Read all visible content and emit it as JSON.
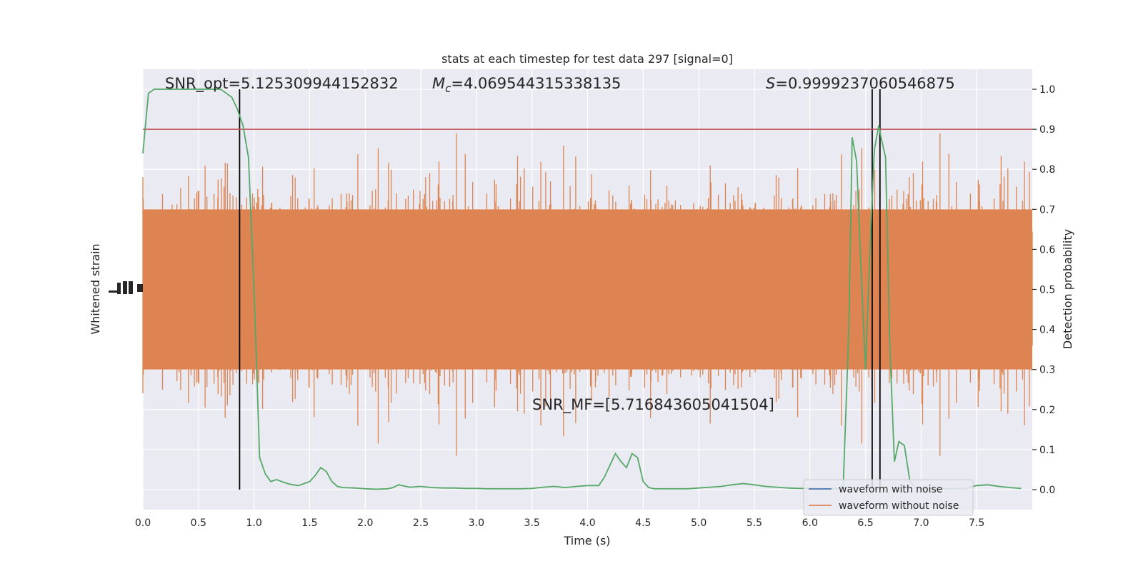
{
  "chart_data": {
    "type": "line",
    "title": "stats at each timestep for test data 297 [signal=0]",
    "xlabel": "Time (s)",
    "ylabel_left": "Whitened strain",
    "ylabel_right": "Detection probability",
    "xlim": [
      0.0,
      8.0
    ],
    "ylim_right": [
      -0.05,
      1.05
    ],
    "x_ticks": [
      "0.0",
      "0.5",
      "1.0",
      "1.5",
      "2.0",
      "2.5",
      "3.0",
      "3.5",
      "4.0",
      "4.5",
      "5.0",
      "5.5",
      "6.0",
      "6.5",
      "7.0",
      "7.5"
    ],
    "y_ticks_right": [
      "0.0",
      "0.1",
      "0.2",
      "0.3",
      "0.4",
      "0.5",
      "0.6",
      "0.7",
      "0.8",
      "0.9",
      "1.0"
    ],
    "grid": true,
    "legend_position": "bottom-right",
    "annotations": {
      "snr_opt": "SNR_opt=5.125309944152832",
      "mc_symbol": "M",
      "mc_sub": "c",
      "mc_value": "=4.069544315338135",
      "s_symbol": "S",
      "s_value": "=0.9999237060546875",
      "snr_mf": "SNR_MF=[5.716843605041504]"
    },
    "threshold": 0.9,
    "vertical_lines_x": [
      0.87,
      6.56,
      6.63
    ],
    "series": [
      {
        "name": "waveform with noise",
        "color": "#4c72b0"
      },
      {
        "name": "waveform without noise",
        "color": "#dd8452"
      },
      {
        "color": "#55a868",
        "x": [
          0.0,
          0.05,
          0.1,
          0.15,
          0.2,
          0.25,
          0.3,
          0.35,
          0.4,
          0.45,
          0.5,
          0.55,
          0.6,
          0.65,
          0.7,
          0.75,
          0.8,
          0.85,
          0.9,
          0.95,
          1.0,
          1.05,
          1.1,
          1.15,
          1.2,
          1.25,
          1.3,
          1.35,
          1.4,
          1.45,
          1.5,
          1.55,
          1.6,
          1.65,
          1.7,
          1.75,
          1.8,
          1.9,
          2.0,
          2.1,
          2.2,
          2.25,
          2.3,
          2.4,
          2.5,
          2.6,
          2.7,
          2.8,
          2.9,
          3.0,
          3.1,
          3.2,
          3.3,
          3.4,
          3.5,
          3.6,
          3.7,
          3.8,
          3.9,
          4.0,
          4.1,
          4.15,
          4.2,
          4.25,
          4.3,
          4.35,
          4.4,
          4.45,
          4.5,
          4.55,
          4.6,
          4.7,
          4.8,
          4.9,
          5.0,
          5.1,
          5.2,
          5.3,
          5.4,
          5.5,
          5.6,
          5.7,
          5.8,
          5.9,
          6.0,
          6.1,
          6.2,
          6.25,
          6.3,
          6.35,
          6.38,
          6.42,
          6.46,
          6.5,
          6.54,
          6.58,
          6.62,
          6.64,
          6.68,
          6.72,
          6.76,
          6.8,
          6.85,
          6.9,
          6.95,
          7.0,
          7.1,
          7.2,
          7.3,
          7.4,
          7.5,
          7.6,
          7.7,
          7.8,
          7.9
        ],
        "y": [
          0.84,
          0.99,
          1.0,
          1.0,
          1.0,
          1.0,
          1.0,
          1.0,
          1.0,
          1.0,
          1.0,
          1.0,
          1.0,
          1.0,
          1.0,
          0.99,
          0.98,
          0.95,
          0.91,
          0.83,
          0.5,
          0.08,
          0.04,
          0.02,
          0.025,
          0.02,
          0.015,
          0.012,
          0.01,
          0.015,
          0.02,
          0.035,
          0.055,
          0.045,
          0.02,
          0.008,
          0.005,
          0.004,
          0.002,
          0.001,
          0.002,
          0.005,
          0.012,
          0.006,
          0.008,
          0.005,
          0.004,
          0.004,
          0.003,
          0.003,
          0.002,
          0.002,
          0.002,
          0.002,
          0.003,
          0.006,
          0.008,
          0.005,
          0.008,
          0.01,
          0.01,
          0.03,
          0.06,
          0.09,
          0.07,
          0.055,
          0.09,
          0.08,
          0.02,
          0.005,
          0.002,
          0.002,
          0.002,
          0.002,
          0.004,
          0.006,
          0.008,
          0.012,
          0.015,
          0.012,
          0.008,
          0.006,
          0.004,
          0.003,
          0.003,
          0.003,
          0.002,
          0.003,
          0.01,
          0.4,
          0.88,
          0.82,
          0.55,
          0.3,
          0.6,
          0.85,
          0.91,
          0.88,
          0.83,
          0.35,
          0.07,
          0.12,
          0.11,
          0.02,
          0.005,
          0.003,
          0.002,
          0.002,
          0.002,
          0.003,
          0.01,
          0.012,
          0.008,
          0.005,
          0.003
        ]
      }
    ]
  }
}
